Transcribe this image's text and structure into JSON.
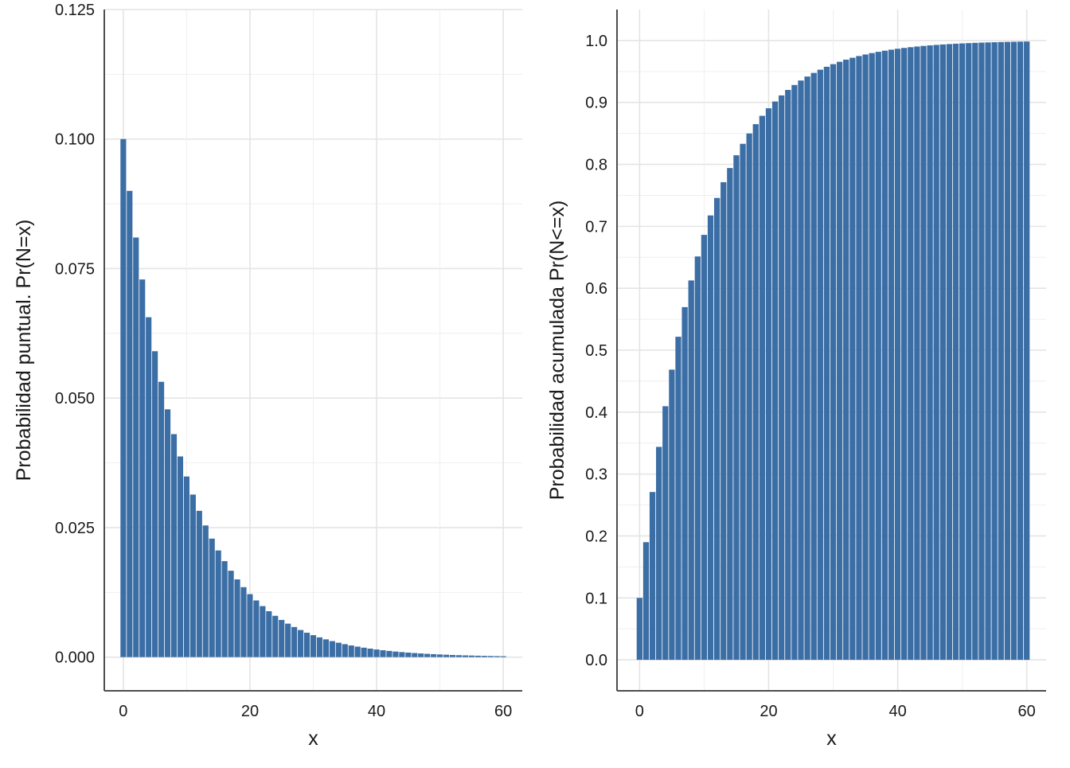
{
  "chart_data": [
    {
      "type": "bar",
      "xlabel": "x",
      "ylabel": "Probabilidad puntual. Pr(N=x)",
      "title": "",
      "xlim": [
        -3,
        63
      ],
      "ylim": [
        -0.0065,
        0.125
      ],
      "x_ticks": [
        0,
        20,
        40,
        60
      ],
      "x_tick_labels": [
        "0",
        "20",
        "40",
        "60"
      ],
      "y_ticks": [
        0,
        0.025,
        0.05,
        0.075,
        0.1,
        0.125
      ],
      "y_tick_labels": [
        "0.000",
        "0.025",
        "0.050",
        "0.075",
        "0.100",
        "0.125"
      ],
      "grid": true,
      "bar_color": "#3c6ea6",
      "x": [
        0,
        1,
        2,
        3,
        4,
        5,
        6,
        7,
        8,
        9,
        10,
        11,
        12,
        13,
        14,
        15,
        16,
        17,
        18,
        19,
        20,
        21,
        22,
        23,
        24,
        25,
        26,
        27,
        28,
        29,
        30,
        31,
        32,
        33,
        34,
        35,
        36,
        37,
        38,
        39,
        40,
        41,
        42,
        43,
        44,
        45,
        46,
        47,
        48,
        49,
        50,
        51,
        52,
        53,
        54,
        55,
        56,
        57,
        58,
        59,
        60
      ],
      "values": [
        0.1,
        0.09,
        0.081,
        0.0729,
        0.06561,
        0.059049,
        0.0531441,
        0.04782969,
        0.043046721,
        0.0387420489,
        0.03486784401,
        0.031381059609,
        0.0282429536481,
        0.02541865828329,
        0.022876792454961,
        0.0205891132094649,
        0.0185302018885184,
        0.0166771816996666,
        0.0150094635296999,
        0.0135085171767299,
        0.0121576654590569,
        0.0109418989131512,
        0.00984770902183612,
        0.00886293811965251,
        0.00797664430768726,
        0.00717897987691853,
        0.00646108188922668,
        0.00581497370030401,
        0.00523347633027361,
        0.00471012869724625,
        0.00423911582752162,
        0.00381520424476946,
        0.00343368382029252,
        0.00309031543826326,
        0.00278128389443694,
        0.00250315550499324,
        0.00225283995449392,
        0.00202755595904453,
        0.00182480036314008,
        0.00164232032682607,
        0.00147808829414346,
        0.00133027946472912,
        0.00119725151825621,
        0.00107752636643058,
        0.000969773729787526,
        0.000872796356808773,
        0.000785516721127896,
        0.000706965049015106,
        0.000636268544113596,
        0.000572641689702236,
        0.000515377520732012,
        0.000463839768658811,
        0.00041745579179293,
        0.000375710212613637,
        0.000338139191352273,
        0.000304325272217046,
        0.000273892744995341,
        0.000246503470495807,
        0.000221853123446226,
        0.000199667811101604,
        0.000179701029991443
      ]
    },
    {
      "type": "bar",
      "xlabel": "x",
      "ylabel": "Probabilidad acumulada Pr(N<=x)",
      "title": "",
      "xlim": [
        -3.5,
        63
      ],
      "ylim": [
        -0.05,
        1.05
      ],
      "x_ticks": [
        0,
        20,
        40,
        60
      ],
      "x_tick_labels": [
        "0",
        "20",
        "40",
        "60"
      ],
      "y_ticks": [
        0,
        0.1,
        0.2,
        0.3,
        0.4,
        0.5,
        0.6,
        0.7,
        0.8,
        0.9,
        1.0
      ],
      "y_tick_labels": [
        "0.0",
        "0.1",
        "0.2",
        "0.3",
        "0.4",
        "0.5",
        "0.6",
        "0.7",
        "0.8",
        "0.9",
        "1.0"
      ],
      "grid": true,
      "bar_color": "#3c6ea6",
      "x": [
        0,
        1,
        2,
        3,
        4,
        5,
        6,
        7,
        8,
        9,
        10,
        11,
        12,
        13,
        14,
        15,
        16,
        17,
        18,
        19,
        20,
        21,
        22,
        23,
        24,
        25,
        26,
        27,
        28,
        29,
        30,
        31,
        32,
        33,
        34,
        35,
        36,
        37,
        38,
        39,
        40,
        41,
        42,
        43,
        44,
        45,
        46,
        47,
        48,
        49,
        50,
        51,
        52,
        53,
        54,
        55,
        56,
        57,
        58,
        59,
        60
      ],
      "values": [
        0.1,
        0.19,
        0.271,
        0.3439,
        0.40951,
        0.468559,
        0.5217031,
        0.56953279,
        0.612579511,
        0.6513215599,
        0.68618940391,
        0.717570463519,
        0.7458134171671,
        0.77123207545039,
        0.794108867905351,
        0.814697981114816,
        0.833228183003334,
        0.849905364703001,
        0.864914828232701,
        0.878423345409431,
        0.890581010868488,
        0.901522909781639,
        0.911370618803475,
        0.920233556923128,
        0.928210201230815,
        0.935389181107734,
        0.94185026299696,
        0.947665236697264,
        0.952898713027538,
        0.957608841724784,
        0.961847957552306,
        0.965663161797075,
        0.969096845617368,
        0.972187161055631,
        0.974968444950068,
        0.977471600455061,
        0.979724440409555,
        0.9817519963686,
        0.98357679673174,
        0.985219117058566,
        0.986697205352709,
        0.98802748481744,
        0.989224736335696,
        0.990302262702126,
        0.991272036431914,
        0.992144832788722,
        0.99293034950985,
        0.993637314558865,
        0.994273583102978,
        0.994846224792681,
        0.995361602313413,
        0.995825442082071,
        0.996242897873864,
        0.996618608086478,
        0.99695674727783,
        0.997261072550047,
        0.997534965295042,
        0.997781468765538,
        0.998003321888984,
        0.998202989700086,
        0.998382690730077
      ]
    }
  ]
}
